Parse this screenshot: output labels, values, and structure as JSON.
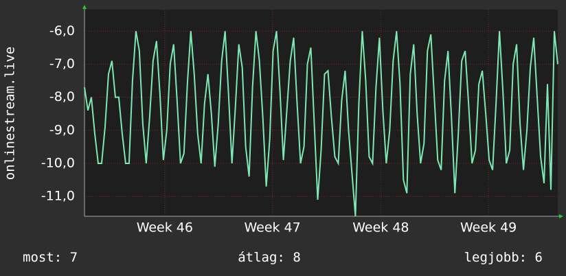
{
  "chart_data": {
    "type": "line",
    "y_label": "onlinestream.live",
    "series": [
      {
        "name": "onlinestream.live",
        "color": "#7ee8b4",
        "values": [
          -7.7,
          -8.4,
          -8.0,
          -9.1,
          -10.0,
          -10.0,
          -8.9,
          -7.3,
          -6.9,
          -8.0,
          -8.0,
          -9.1,
          -10.0,
          -10.0,
          -7.5,
          -6.0,
          -6.6,
          -8.8,
          -10.0,
          -8.6,
          -6.9,
          -6.3,
          -7.9,
          -9.9,
          -9.0,
          -7.0,
          -6.4,
          -8.1,
          -10.0,
          -9.7,
          -7.6,
          -6.0,
          -7.3,
          -9.1,
          -10.0,
          -8.2,
          -7.3,
          -8.5,
          -10.1,
          -8.8,
          -6.9,
          -6.0,
          -7.9,
          -10.0,
          -8.3,
          -6.4,
          -7.1,
          -9.5,
          -10.4,
          -7.7,
          -6.0,
          -6.9,
          -8.6,
          -10.7,
          -9.3,
          -6.6,
          -6.0,
          -7.8,
          -9.9,
          -8.4,
          -6.9,
          -6.2,
          -8.2,
          -10.0,
          -9.5,
          -7.0,
          -6.5,
          -8.8,
          -11.1,
          -9.6,
          -7.3,
          -7.2,
          -8.6,
          -9.8,
          -10.0,
          -8.1,
          -7.2,
          -9.0,
          -10.3,
          -11.6,
          -8.2,
          -6.0,
          -7.5,
          -9.8,
          -10.0,
          -7.7,
          -6.2,
          -8.4,
          -10.0,
          -9.0,
          -6.9,
          -6.0,
          -7.6,
          -10.5,
          -10.9,
          -7.3,
          -6.4,
          -8.5,
          -10.0,
          -9.4,
          -6.6,
          -6.1,
          -8.0,
          -9.9,
          -10.2,
          -7.5,
          -6.6,
          -8.6,
          -10.9,
          -9.1,
          -6.9,
          -6.6,
          -8.2,
          -10.0,
          -9.6,
          -7.6,
          -7.2,
          -8.5,
          -9.9,
          -10.2,
          -8.2,
          -6.0,
          -7.8,
          -10.0,
          -9.6,
          -7.0,
          -6.4,
          -8.8,
          -10.2,
          -9.0,
          -7.1,
          -6.2,
          -8.0,
          -9.8,
          -10.6,
          -7.6,
          -10.8,
          -6.0,
          -7.0
        ]
      }
    ],
    "xlim": [
      0,
      138
    ],
    "xticks": [
      {
        "value": 23.4,
        "label": "Week 46"
      },
      {
        "value": 54.8,
        "label": "Week 47"
      },
      {
        "value": 86.4,
        "label": "Week 48"
      },
      {
        "value": 117.8,
        "label": "Week 49"
      }
    ],
    "ylim": [
      -11.6,
      -5.35
    ],
    "yticks": [
      {
        "value": -11,
        "label": "-11,0"
      },
      {
        "value": -10,
        "label": "-10,0"
      },
      {
        "value": -9,
        "label": "-9,0"
      },
      {
        "value": -8,
        "label": "-8,0"
      },
      {
        "value": -7,
        "label": "-7,0"
      },
      {
        "value": -6,
        "label": "-6,0"
      }
    ],
    "grid": true,
    "stats": [
      {
        "label": "most:",
        "value": 7
      },
      {
        "label": "átlag:",
        "value": 8
      },
      {
        "label": "legjobb:",
        "value": 6
      }
    ]
  }
}
